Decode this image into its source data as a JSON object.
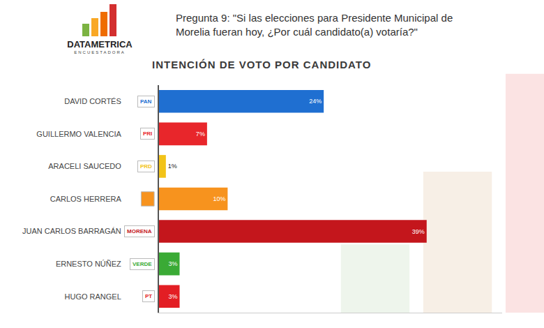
{
  "header": {
    "logo": "DATAMETRICA",
    "tagline": "ENCUESTADORA"
  },
  "chart_data": {
    "type": "bar",
    "orientation": "horizontal",
    "title": "Pregunta 9: \"Si las elecciones para Presidente Municipal de Morelia fueran hoy, ¿Por cuál candidato(a) votaría?\"",
    "subtitle": "INTENCIÓN DE VOTO POR CANDIDATO",
    "categories": [
      "DAVID CORTÉS",
      "GUILLERMO VALENCIA",
      "ARACELI SAUCEDO",
      "CARLOS HERRERA",
      "JUAN CARLOS BARRAGÁN",
      "ERNESTO NÚÑEZ",
      "HUGO RANGEL"
    ],
    "values": [
      24,
      7,
      1,
      10,
      39,
      3,
      3
    ],
    "value_labels": [
      "24%",
      "7%",
      "1%",
      "10%",
      "39%",
      "3%",
      "3%"
    ],
    "colors": [
      "#1f6fd1",
      "#e8262b",
      "#f2c318",
      "#f7931e",
      "#c4161c",
      "#3aaa35",
      "#e31e24"
    ],
    "party_labels": [
      "PAN",
      "PRI",
      "PRD",
      null,
      "MORENA",
      "VERDE",
      "PT"
    ],
    "xlim": [
      0,
      50
    ],
    "xticks": [],
    "data_labels": true,
    "tick_labels": "y",
    "grid": false
  }
}
